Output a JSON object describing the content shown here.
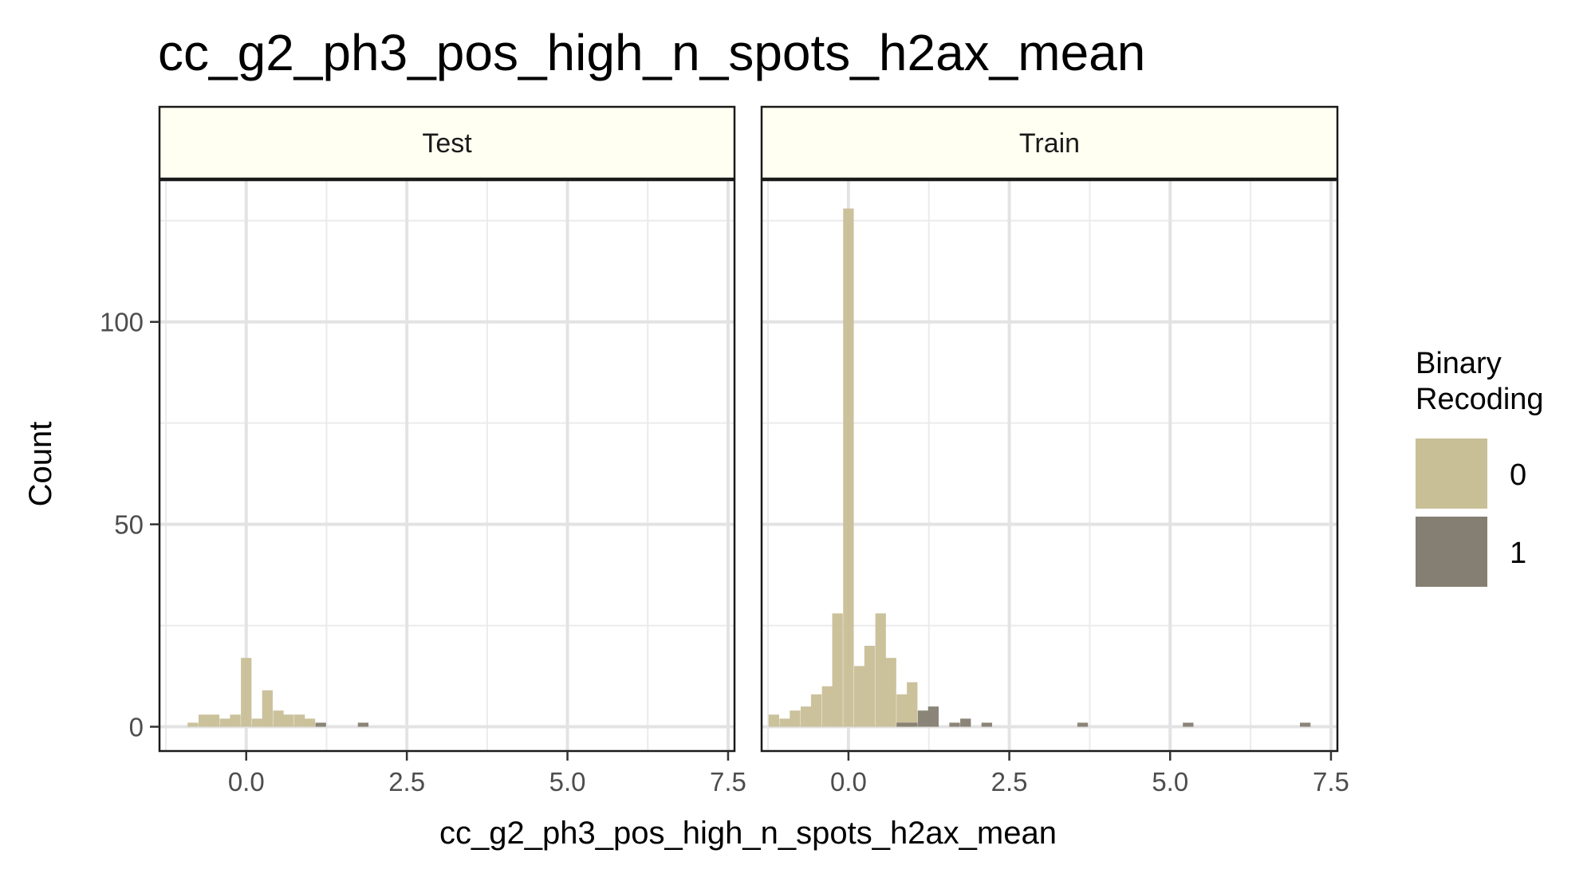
{
  "title": "cc_g2_ph3_pos_high_n_spots_h2ax_mean",
  "chart_data": {
    "type": "bar",
    "title": "cc_g2_ph3_pos_high_n_spots_h2ax_mean",
    "xlabel": "cc_g2_ph3_pos_high_n_spots_h2ax_mean",
    "ylabel": "Count",
    "xlim": [
      -1.35,
      7.6
    ],
    "ylim": [
      -6,
      135
    ],
    "x_ticks": [
      "0.0",
      "2.5",
      "5.0",
      "7.5"
    ],
    "x_tick_values": [
      0,
      2.5,
      5,
      7.5
    ],
    "y_ticks": [
      "0",
      "50",
      "100"
    ],
    "y_tick_values": [
      0,
      50,
      100
    ],
    "bin_width": 0.165,
    "grid": true,
    "legend": {
      "title_lines": [
        "Binary",
        "Recoding"
      ],
      "placement": "right",
      "entries": [
        {
          "label": "0",
          "color": "#c8bf97"
        },
        {
          "label": "1",
          "color": "#857e72"
        }
      ]
    },
    "facets": [
      {
        "label": "Test",
        "series": [
          {
            "name": "0",
            "color": "#c8bf97",
            "x": [
              -0.83,
              -0.66,
              -0.5,
              -0.33,
              -0.17,
              0.0,
              0.17,
              0.33,
              0.5,
              0.66,
              0.83,
              0.99
            ],
            "y": [
              1,
              3,
              3,
              2,
              3,
              17,
              2,
              9,
              4,
              3,
              3,
              2
            ]
          },
          {
            "name": "1",
            "color": "#857e72",
            "x": [
              1.16,
              1.82
            ],
            "y": [
              1,
              1
            ]
          }
        ]
      },
      {
        "label": "Train",
        "series": [
          {
            "name": "0",
            "color": "#c8bf97",
            "x": [
              -1.16,
              -0.99,
              -0.83,
              -0.66,
              -0.5,
              -0.33,
              -0.17,
              0.0,
              0.17,
              0.33,
              0.5,
              0.66,
              0.83,
              0.99
            ],
            "y": [
              3,
              2,
              4,
              5,
              8,
              10,
              28,
              128,
              15,
              20,
              28,
              17,
              8,
              11
            ]
          },
          {
            "name": "1",
            "color": "#857e72",
            "x": [
              0.83,
              0.99,
              1.16,
              1.32,
              1.65,
              1.82,
              2.15,
              3.64,
              5.28,
              7.1
            ],
            "y": [
              1,
              1,
              4,
              5,
              1,
              2,
              1,
              1,
              1,
              1
            ]
          }
        ]
      }
    ]
  }
}
